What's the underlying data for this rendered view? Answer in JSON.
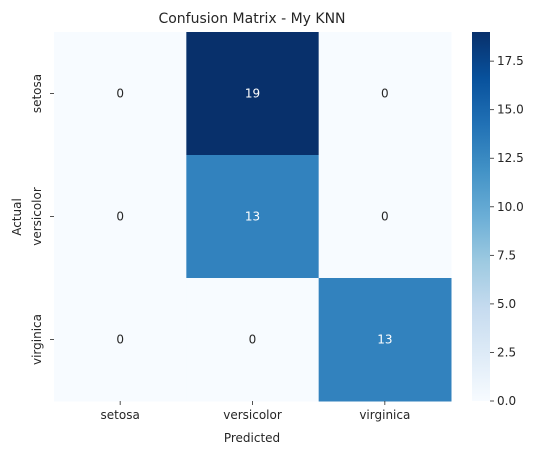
{
  "chart_data": {
    "type": "heatmap",
    "title": "Confusion Matrix - My KNN",
    "xlabel": "Predicted",
    "ylabel": "Actual",
    "x_categories": [
      "setosa",
      "versicolor",
      "virginica"
    ],
    "y_categories": [
      "setosa",
      "versicolor",
      "virginica"
    ],
    "matrix": [
      [
        0,
        19,
        0
      ],
      [
        0,
        13,
        0
      ],
      [
        0,
        0,
        13
      ]
    ],
    "colormap": "Blues",
    "colormap_stops": [
      "#f7fbff",
      "#deebf7",
      "#c6dbef",
      "#9ecae1",
      "#6baed6",
      "#4292c6",
      "#2171b5",
      "#08519c",
      "#08306b"
    ],
    "vmin": 0,
    "vmax": 19,
    "colorbar_ticks": [
      "0.0",
      "2.5",
      "5.0",
      "7.5",
      "10.0",
      "12.5",
      "15.0",
      "17.5"
    ],
    "annotation_colors": {
      "light": "#ffffff",
      "dark": "#262626"
    }
  }
}
